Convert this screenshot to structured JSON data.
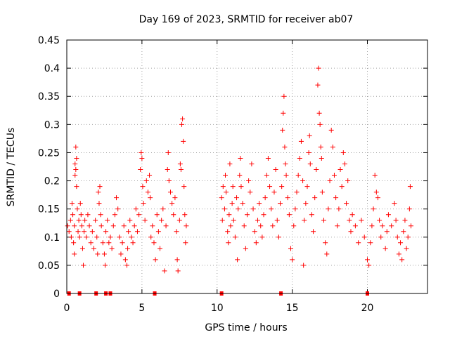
{
  "chart_data": {
    "type": "scatter",
    "title": "Day 169 of 2023, SRMTID for receiver ab07",
    "xlabel": "GPS time / hours",
    "ylabel": "SRMTID / TECUs",
    "xlim": [
      0,
      24
    ],
    "ylim": [
      0,
      0.45
    ],
    "grid": true,
    "marker": "+",
    "color": "#ff0000",
    "x_ticks": [
      0,
      5,
      10,
      15,
      20
    ],
    "y_ticks": [
      0,
      0.05,
      0.1,
      0.15,
      0.2,
      0.25,
      0.3,
      0.35,
      0.4,
      0.45
    ],
    "x_tick_labels": [
      "0",
      "5",
      "10",
      "15",
      "20"
    ],
    "y_tick_labels": [
      "0",
      "0.05",
      "0.1",
      "0.15",
      "0.2",
      "0.25",
      "0.3",
      "0.35",
      "0.4",
      "0.45"
    ],
    "series": [
      {
        "name": "SRMTID",
        "points": [
          [
            0.05,
            0.12
          ],
          [
            0.15,
            0.11
          ],
          [
            0.25,
            0.13
          ],
          [
            0.3,
            0.1
          ],
          [
            0.35,
            0.16
          ],
          [
            0.4,
            0.14
          ],
          [
            0.45,
            0.09
          ],
          [
            0.5,
            0.07
          ],
          [
            0.5,
            0.12
          ],
          [
            0.55,
            0.21
          ],
          [
            0.55,
            0.23
          ],
          [
            0.6,
            0.22
          ],
          [
            0.6,
            0.26
          ],
          [
            0.65,
            0.24
          ],
          [
            0.65,
            0.19
          ],
          [
            0.7,
            0.15
          ],
          [
            0.75,
            0.11
          ],
          [
            0.8,
            0.13
          ],
          [
            0.85,
            0.1
          ],
          [
            0.9,
            0.16
          ],
          [
            0.95,
            0.14
          ],
          [
            1.0,
            0.12
          ],
          [
            1.05,
            0.08
          ],
          [
            1.1,
            0.05
          ],
          [
            1.15,
            0.11
          ],
          [
            1.2,
            0.13
          ],
          [
            1.3,
            0.1
          ],
          [
            1.4,
            0.14
          ],
          [
            1.5,
            0.12
          ],
          [
            1.6,
            0.09
          ],
          [
            1.7,
            0.11
          ],
          [
            1.8,
            0.08
          ],
          [
            1.9,
            0.13
          ],
          [
            2.0,
            0.1
          ],
          [
            2.05,
            0.07
          ],
          [
            2.1,
            0.18
          ],
          [
            2.15,
            0.16
          ],
          [
            2.2,
            0.19
          ],
          [
            2.25,
            0.14
          ],
          [
            2.3,
            0.12
          ],
          [
            2.4,
            0.09
          ],
          [
            2.5,
            0.07
          ],
          [
            2.55,
            0.05
          ],
          [
            2.6,
            0.11
          ],
          [
            2.7,
            0.13
          ],
          [
            2.8,
            0.09
          ],
          [
            2.9,
            0.1
          ],
          [
            3.0,
            0.08
          ],
          [
            3.1,
            0.12
          ],
          [
            3.2,
            0.14
          ],
          [
            3.3,
            0.17
          ],
          [
            3.4,
            0.15
          ],
          [
            3.5,
            0.1
          ],
          [
            3.6,
            0.07
          ],
          [
            3.7,
            0.09
          ],
          [
            3.8,
            0.12
          ],
          [
            3.9,
            0.06
          ],
          [
            4.0,
            0.05
          ],
          [
            4.05,
            0.08
          ],
          [
            4.1,
            0.11
          ],
          [
            4.2,
            0.13
          ],
          [
            4.3,
            0.1
          ],
          [
            4.4,
            0.09
          ],
          [
            4.5,
            0.12
          ],
          [
            4.6,
            0.15
          ],
          [
            4.7,
            0.11
          ],
          [
            4.8,
            0.14
          ],
          [
            4.9,
            0.22
          ],
          [
            4.95,
            0.25
          ],
          [
            5.0,
            0.24
          ],
          [
            5.05,
            0.19
          ],
          [
            5.1,
            0.16
          ],
          [
            5.2,
            0.13
          ],
          [
            5.3,
            0.2
          ],
          [
            5.4,
            0.18
          ],
          [
            5.5,
            0.21
          ],
          [
            5.55,
            0.17
          ],
          [
            5.6,
            0.1
          ],
          [
            5.7,
            0.12
          ],
          [
            5.8,
            0.09
          ],
          [
            5.9,
            0.06
          ],
          [
            6.0,
            0.14
          ],
          [
            6.1,
            0.11
          ],
          [
            6.2,
            0.08
          ],
          [
            6.3,
            0.13
          ],
          [
            6.4,
            0.15
          ],
          [
            6.5,
            0.04
          ],
          [
            6.6,
            0.12
          ],
          [
            6.7,
            0.22
          ],
          [
            6.75,
            0.25
          ],
          [
            6.8,
            0.2
          ],
          [
            6.9,
            0.18
          ],
          [
            7.0,
            0.16
          ],
          [
            7.1,
            0.14
          ],
          [
            7.2,
            0.17
          ],
          [
            7.3,
            0.11
          ],
          [
            7.35,
            0.06
          ],
          [
            7.4,
            0.04
          ],
          [
            7.5,
            0.13
          ],
          [
            7.55,
            0.23
          ],
          [
            7.6,
            0.22
          ],
          [
            7.65,
            0.3
          ],
          [
            7.7,
            0.31
          ],
          [
            7.75,
            0.27
          ],
          [
            7.8,
            0.19
          ],
          [
            7.85,
            0.14
          ],
          [
            7.9,
            0.09
          ],
          [
            7.95,
            0.12
          ],
          [
            10.3,
            0.17
          ],
          [
            10.35,
            0.13
          ],
          [
            10.4,
            0.19
          ],
          [
            10.5,
            0.15
          ],
          [
            10.55,
            0.21
          ],
          [
            10.6,
            0.18
          ],
          [
            10.7,
            0.11
          ],
          [
            10.75,
            0.09
          ],
          [
            10.8,
            0.14
          ],
          [
            10.85,
            0.23
          ],
          [
            10.9,
            0.12
          ],
          [
            11.0,
            0.16
          ],
          [
            11.05,
            0.19
          ],
          [
            11.1,
            0.13
          ],
          [
            11.2,
            0.1
          ],
          [
            11.3,
            0.17
          ],
          [
            11.35,
            0.06
          ],
          [
            11.4,
            0.15
          ],
          [
            11.5,
            0.21
          ],
          [
            11.55,
            0.24
          ],
          [
            11.6,
            0.19
          ],
          [
            11.7,
            0.16
          ],
          [
            11.8,
            0.12
          ],
          [
            11.9,
            0.08
          ],
          [
            12.0,
            0.14
          ],
          [
            12.1,
            0.2
          ],
          [
            12.2,
            0.18
          ],
          [
            12.3,
            0.23
          ],
          [
            12.4,
            0.15
          ],
          [
            12.5,
            0.11
          ],
          [
            12.6,
            0.09
          ],
          [
            12.7,
            0.13
          ],
          [
            12.8,
            0.16
          ],
          [
            12.9,
            0.12
          ],
          [
            13.0,
            0.1
          ],
          [
            13.1,
            0.14
          ],
          [
            13.2,
            0.17
          ],
          [
            13.3,
            0.21
          ],
          [
            13.4,
            0.24
          ],
          [
            13.5,
            0.19
          ],
          [
            13.6,
            0.15
          ],
          [
            13.7,
            0.12
          ],
          [
            13.8,
            0.18
          ],
          [
            13.9,
            0.22
          ],
          [
            14.0,
            0.13
          ],
          [
            14.1,
            0.1
          ],
          [
            14.2,
            0.16
          ],
          [
            14.3,
            0.19
          ],
          [
            14.35,
            0.29
          ],
          [
            14.4,
            0.32
          ],
          [
            14.45,
            0.35
          ],
          [
            14.5,
            0.26
          ],
          [
            14.55,
            0.23
          ],
          [
            14.6,
            0.21
          ],
          [
            14.7,
            0.17
          ],
          [
            14.8,
            0.14
          ],
          [
            14.9,
            0.08
          ],
          [
            15.0,
            0.06
          ],
          [
            15.1,
            0.12
          ],
          [
            15.2,
            0.15
          ],
          [
            15.3,
            0.18
          ],
          [
            15.4,
            0.21
          ],
          [
            15.5,
            0.24
          ],
          [
            15.6,
            0.27
          ],
          [
            15.7,
            0.2
          ],
          [
            15.75,
            0.05
          ],
          [
            15.8,
            0.13
          ],
          [
            15.9,
            0.16
          ],
          [
            16.0,
            0.19
          ],
          [
            16.1,
            0.25
          ],
          [
            16.15,
            0.28
          ],
          [
            16.2,
            0.23
          ],
          [
            16.3,
            0.14
          ],
          [
            16.4,
            0.11
          ],
          [
            16.5,
            0.17
          ],
          [
            16.6,
            0.22
          ],
          [
            16.7,
            0.37
          ],
          [
            16.75,
            0.4
          ],
          [
            16.8,
            0.32
          ],
          [
            16.85,
            0.3
          ],
          [
            16.9,
            0.26
          ],
          [
            16.95,
            0.24
          ],
          [
            17.0,
            0.18
          ],
          [
            17.1,
            0.13
          ],
          [
            17.2,
            0.09
          ],
          [
            17.3,
            0.07
          ],
          [
            17.4,
            0.15
          ],
          [
            17.5,
            0.2
          ],
          [
            17.6,
            0.29
          ],
          [
            17.7,
            0.26
          ],
          [
            17.8,
            0.21
          ],
          [
            17.9,
            0.17
          ],
          [
            18.0,
            0.12
          ],
          [
            18.1,
            0.15
          ],
          [
            18.2,
            0.22
          ],
          [
            18.3,
            0.19
          ],
          [
            18.4,
            0.25
          ],
          [
            18.5,
            0.23
          ],
          [
            18.6,
            0.16
          ],
          [
            18.7,
            0.2
          ],
          [
            18.8,
            0.13
          ],
          [
            18.9,
            0.11
          ],
          [
            19.0,
            0.14
          ],
          [
            19.2,
            0.12
          ],
          [
            19.4,
            0.09
          ],
          [
            19.6,
            0.13
          ],
          [
            19.8,
            0.1
          ],
          [
            20.0,
            0.06
          ],
          [
            20.1,
            0.05
          ],
          [
            20.2,
            0.09
          ],
          [
            20.3,
            0.12
          ],
          [
            20.4,
            0.15
          ],
          [
            20.5,
            0.21
          ],
          [
            20.6,
            0.18
          ],
          [
            20.7,
            0.17
          ],
          [
            20.8,
            0.13
          ],
          [
            20.9,
            0.1
          ],
          [
            21.0,
            0.12
          ],
          [
            21.2,
            0.08
          ],
          [
            21.3,
            0.11
          ],
          [
            21.4,
            0.14
          ],
          [
            21.6,
            0.12
          ],
          [
            21.8,
            0.16
          ],
          [
            21.9,
            0.13
          ],
          [
            22.0,
            0.1
          ],
          [
            22.1,
            0.07
          ],
          [
            22.2,
            0.09
          ],
          [
            22.3,
            0.06
          ],
          [
            22.4,
            0.11
          ],
          [
            22.5,
            0.13
          ],
          [
            22.6,
            0.08
          ],
          [
            22.7,
            0.1
          ],
          [
            22.8,
            0.15
          ],
          [
            22.85,
            0.19
          ],
          [
            22.9,
            0.12
          ]
        ]
      }
    ],
    "zero_markers_x": [
      0.15,
      0.85,
      1.95,
      2.6,
      2.9,
      5.85,
      10.3,
      14.25,
      20.0
    ]
  }
}
